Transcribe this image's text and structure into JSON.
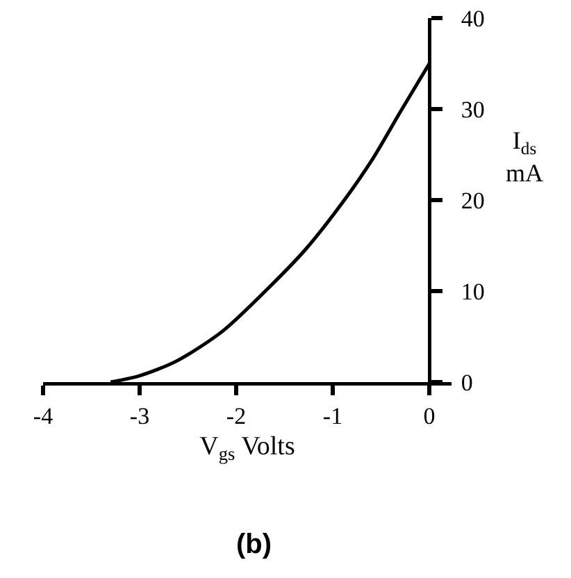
{
  "chart_data": {
    "type": "line",
    "xlabel": "V$_{gs}$ Volts",
    "ylabel": "I$_{ds}$ mA",
    "annotations": [
      "(b)"
    ],
    "x": [
      -3.3,
      -3.0,
      -2.62,
      -2.14,
      -1.66,
      -1.28,
      -0.95,
      -0.6,
      -0.3,
      0
    ],
    "series": [
      {
        "color": "#000000",
        "values": [
          0,
          0.7,
          2.3,
          5.6,
          10.4,
          14.6,
          19,
          24.3,
          29.7,
          35
        ]
      }
    ],
    "xlim": [
      -4,
      0.23
    ],
    "xticks": [
      -4,
      -3,
      -2,
      -1,
      0
    ],
    "ylim": [
      0,
      40
    ],
    "yticks": [
      0,
      10,
      20,
      30,
      40
    ]
  }
}
